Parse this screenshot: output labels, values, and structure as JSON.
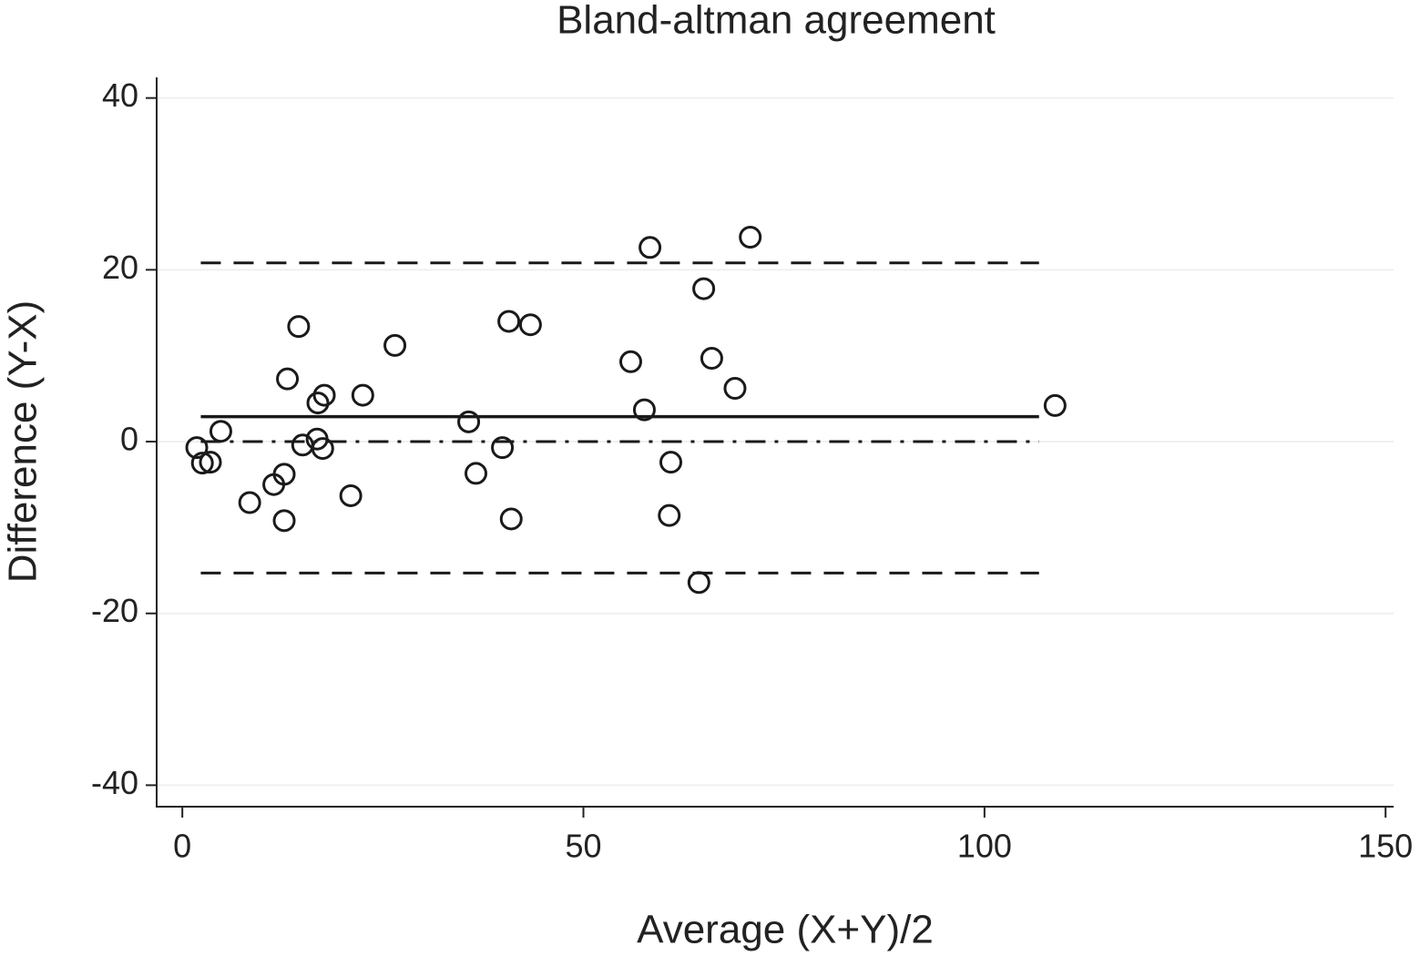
{
  "chart_data": {
    "type": "scatter",
    "title": "Bland-altman agreement",
    "x_label": "Average (X+Y)/2",
    "y_label": "Difference (Y-X)",
    "x": [
      1.8,
      2.5,
      3.5,
      4.8,
      8.4,
      11.4,
      12.7,
      12.7,
      13.1,
      14.5,
      15.0,
      16.8,
      16.9,
      17.5,
      17.7,
      21.0,
      22.5,
      26.5,
      35.7,
      36.6,
      39.9,
      40.7,
      41.0,
      43.4,
      55.9,
      57.6,
      58.3,
      60.9,
      60.7,
      64.4,
      65.0,
      66.0,
      68.9,
      70.8,
      108.8
    ],
    "values": [
      -0.7,
      -2.5,
      -2.4,
      1.2,
      -7.1,
      -5.0,
      -3.8,
      -9.2,
      7.3,
      13.4,
      -0.4,
      0.3,
      4.5,
      -0.8,
      5.4,
      -6.3,
      5.4,
      11.2,
      2.3,
      -3.7,
      -0.7,
      14.0,
      -9.0,
      13.6,
      9.3,
      3.7,
      22.6,
      -2.4,
      -8.6,
      -16.4,
      17.8,
      9.7,
      6.2,
      23.8,
      4.2
    ],
    "color": "#1a1a1a",
    "hlines": [
      {
        "y": 2.9,
        "style": "solid",
        "xrange": [
          2.3,
          106.8
        ]
      },
      {
        "y": 20.8,
        "style": "dashed",
        "xrange": [
          2.3,
          106.8
        ]
      },
      {
        "y": -15.3,
        "style": "dashed",
        "xrange": [
          2.3,
          106.8
        ]
      },
      {
        "y": 0,
        "style": "dashdot",
        "xrange": [
          2.3,
          106.8
        ]
      }
    ],
    "xlim": [
      -3.2,
      151
    ],
    "xticks": [
      0,
      50,
      100,
      150
    ],
    "ylim": [
      -42.5,
      42.4
    ],
    "yticks": [
      40,
      20,
      0,
      -20,
      -40
    ],
    "grid": true
  }
}
